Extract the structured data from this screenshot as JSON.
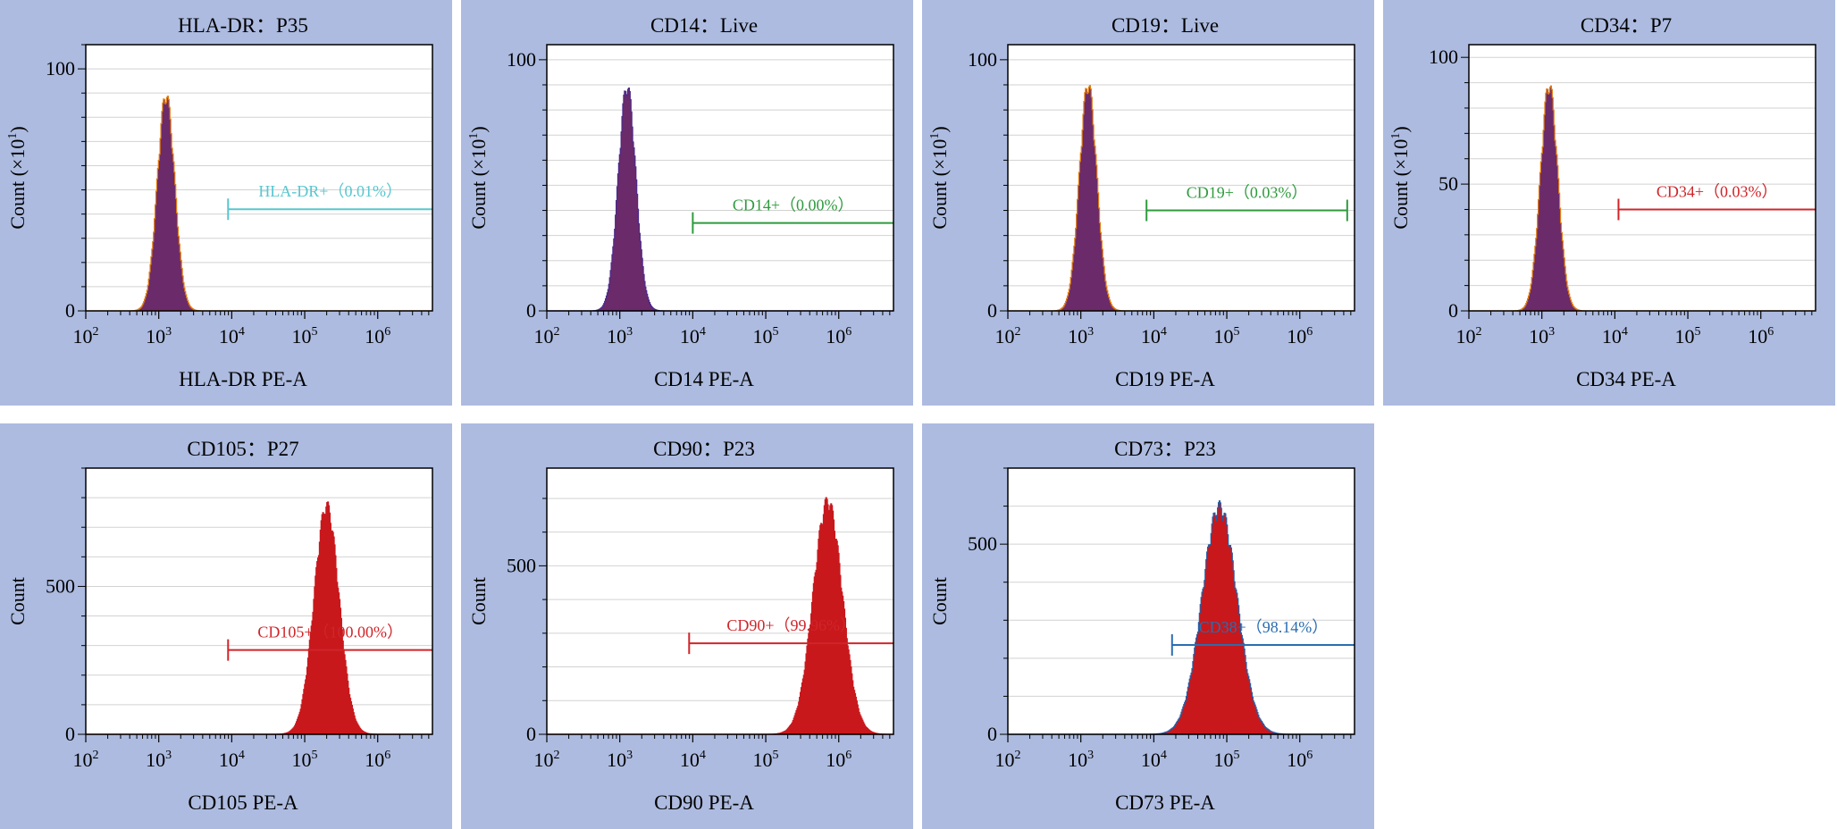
{
  "figure": {
    "panel_bg": "#adbbe0",
    "grid_color": "#d2d2d2"
  },
  "chart_data": [
    {
      "type": "histogram",
      "title": "HLA-DR：P35",
      "xlabel": "HLA-DR PE-A",
      "ylabel": "Count (×10",
      "ylabel_sup": "1",
      "ylabel_end": ")",
      "xscale": "log",
      "xlim": [
        2,
        6.75
      ],
      "xticks": [
        "2",
        "3",
        "4",
        "5",
        "6"
      ],
      "ylim": [
        0,
        110
      ],
      "yticks": [
        0,
        100
      ],
      "yticklabels": [
        "0",
        "100"
      ],
      "minor_y": 10,
      "peak": {
        "center_log": 3.1,
        "sigma": 0.12,
        "height": 88,
        "color": "#6b2a6a",
        "edge": "#e07a10"
      },
      "gate": {
        "label": "HLA-DR+（0.01%）",
        "x_start_log": 3.95,
        "x_end_log": 6.75,
        "y": 42,
        "color": "#58c6cf",
        "right_tick": false
      }
    },
    {
      "type": "histogram",
      "title": "CD14：Live",
      "xlabel": "CD14 PE-A",
      "ylabel": "Count (×10",
      "ylabel_sup": "1",
      "ylabel_end": ")",
      "xscale": "log",
      "xlim": [
        2,
        6.75
      ],
      "xticks": [
        "2",
        "3",
        "4",
        "5",
        "6"
      ],
      "ylim": [
        0,
        106
      ],
      "yticks": [
        0,
        100
      ],
      "yticklabels": [
        "0",
        "100"
      ],
      "minor_y": 10,
      "peak": {
        "center_log": 3.1,
        "sigma": 0.12,
        "height": 88,
        "color": "#6b2a6a",
        "edge": "#4b2a8a"
      },
      "gate": {
        "label": "CD14+（0.00%）",
        "x_start_log": 4.0,
        "x_end_log": 6.75,
        "y": 35,
        "color": "#2f9b3e",
        "right_tick": false
      }
    },
    {
      "type": "histogram",
      "title": "CD19：Live",
      "xlabel": "CD19 PE-A",
      "ylabel": "Count (×10",
      "ylabel_sup": "1",
      "ylabel_end": ")",
      "xscale": "log",
      "xlim": [
        2,
        6.75
      ],
      "xticks": [
        "2",
        "3",
        "4",
        "5",
        "6"
      ],
      "ylim": [
        0,
        106
      ],
      "yticks": [
        0,
        100
      ],
      "yticklabels": [
        "0",
        "100"
      ],
      "minor_y": 10,
      "peak": {
        "center_log": 3.1,
        "sigma": 0.12,
        "height": 89,
        "color": "#6b2a6a",
        "edge": "#e07a10"
      },
      "gate": {
        "label": "CD19+（0.03%）",
        "x_start_log": 3.9,
        "x_end_log": 6.65,
        "y": 40,
        "color": "#2f9b3e",
        "right_tick": true
      }
    },
    {
      "type": "histogram",
      "title": "CD34：P7",
      "xlabel": "CD34 PE-A",
      "ylabel": "Count (×10",
      "ylabel_sup": "1",
      "ylabel_end": ")",
      "xscale": "log",
      "xlim": [
        2,
        6.75
      ],
      "xticks": [
        "2",
        "3",
        "4",
        "5",
        "6"
      ],
      "ylim": [
        0,
        105
      ],
      "yticks": [
        0,
        50,
        100
      ],
      "yticklabels": [
        "0",
        "50",
        "100"
      ],
      "minor_y": 10,
      "peak": {
        "center_log": 3.1,
        "sigma": 0.12,
        "height": 88,
        "color": "#6b2a6a",
        "edge": "#e07a10"
      },
      "gate": {
        "label": "CD34+（0.03%）",
        "x_start_log": 4.05,
        "x_end_log": 6.75,
        "y": 40,
        "color": "#d0252a",
        "right_tick": false
      }
    },
    {
      "type": "histogram",
      "title": "CD105：P27",
      "xlabel": "CD105 PE-A",
      "ylabel": "Count",
      "xscale": "log",
      "xlim": [
        2,
        6.75
      ],
      "xticks": [
        "2",
        "3",
        "4",
        "5",
        "6"
      ],
      "ylim": [
        0,
        900
      ],
      "yticks": [
        0,
        500
      ],
      "yticklabels": [
        "0",
        "500"
      ],
      "minor_y": 100,
      "peak": {
        "center_log": 5.3,
        "sigma": 0.17,
        "height": 760,
        "color": "#c8181c",
        "edge": "#c8181c"
      },
      "gate": {
        "label": "CD105+（100.00%）",
        "x_start_log": 3.95,
        "x_end_log": 6.75,
        "y": 285,
        "color": "#d0252a",
        "right_tick": false
      }
    },
    {
      "type": "histogram",
      "title": "CD90：P23",
      "xlabel": "CD90 PE-A",
      "ylabel": "Count",
      "xscale": "log",
      "xlim": [
        2,
        6.75
      ],
      "xticks": [
        "2",
        "3",
        "4",
        "5",
        "6"
      ],
      "ylim": [
        0,
        790
      ],
      "yticks": [
        0,
        500
      ],
      "yticklabels": [
        "0",
        "500"
      ],
      "minor_y": 100,
      "peak": {
        "center_log": 5.85,
        "sigma": 0.2,
        "height": 680,
        "color": "#c8181c",
        "edge": "#c8181c"
      },
      "gate": {
        "label": "CD90+（99.96%）",
        "x_start_log": 3.95,
        "x_end_log": 6.75,
        "y": 270,
        "color": "#d0252a",
        "right_tick": false
      }
    },
    {
      "type": "histogram",
      "title": "CD73：P23",
      "xlabel": "CD73 PE-A",
      "ylabel": "Count",
      "xscale": "log",
      "xlim": [
        2,
        6.75
      ],
      "xticks": [
        "2",
        "3",
        "4",
        "5",
        "6"
      ],
      "ylim": [
        0,
        700
      ],
      "yticks": [
        0,
        500
      ],
      "yticklabels": [
        "0",
        "500"
      ],
      "minor_y": 100,
      "peak": {
        "center_log": 4.9,
        "sigma": 0.24,
        "height": 590,
        "color": "#c8181c",
        "edge": "#2a5aa0"
      },
      "gate": {
        "label": "CD38+（98.14%）",
        "x_start_log": 4.25,
        "x_end_log": 6.75,
        "y": 235,
        "color": "#2a6db0",
        "right_tick": false
      }
    }
  ]
}
